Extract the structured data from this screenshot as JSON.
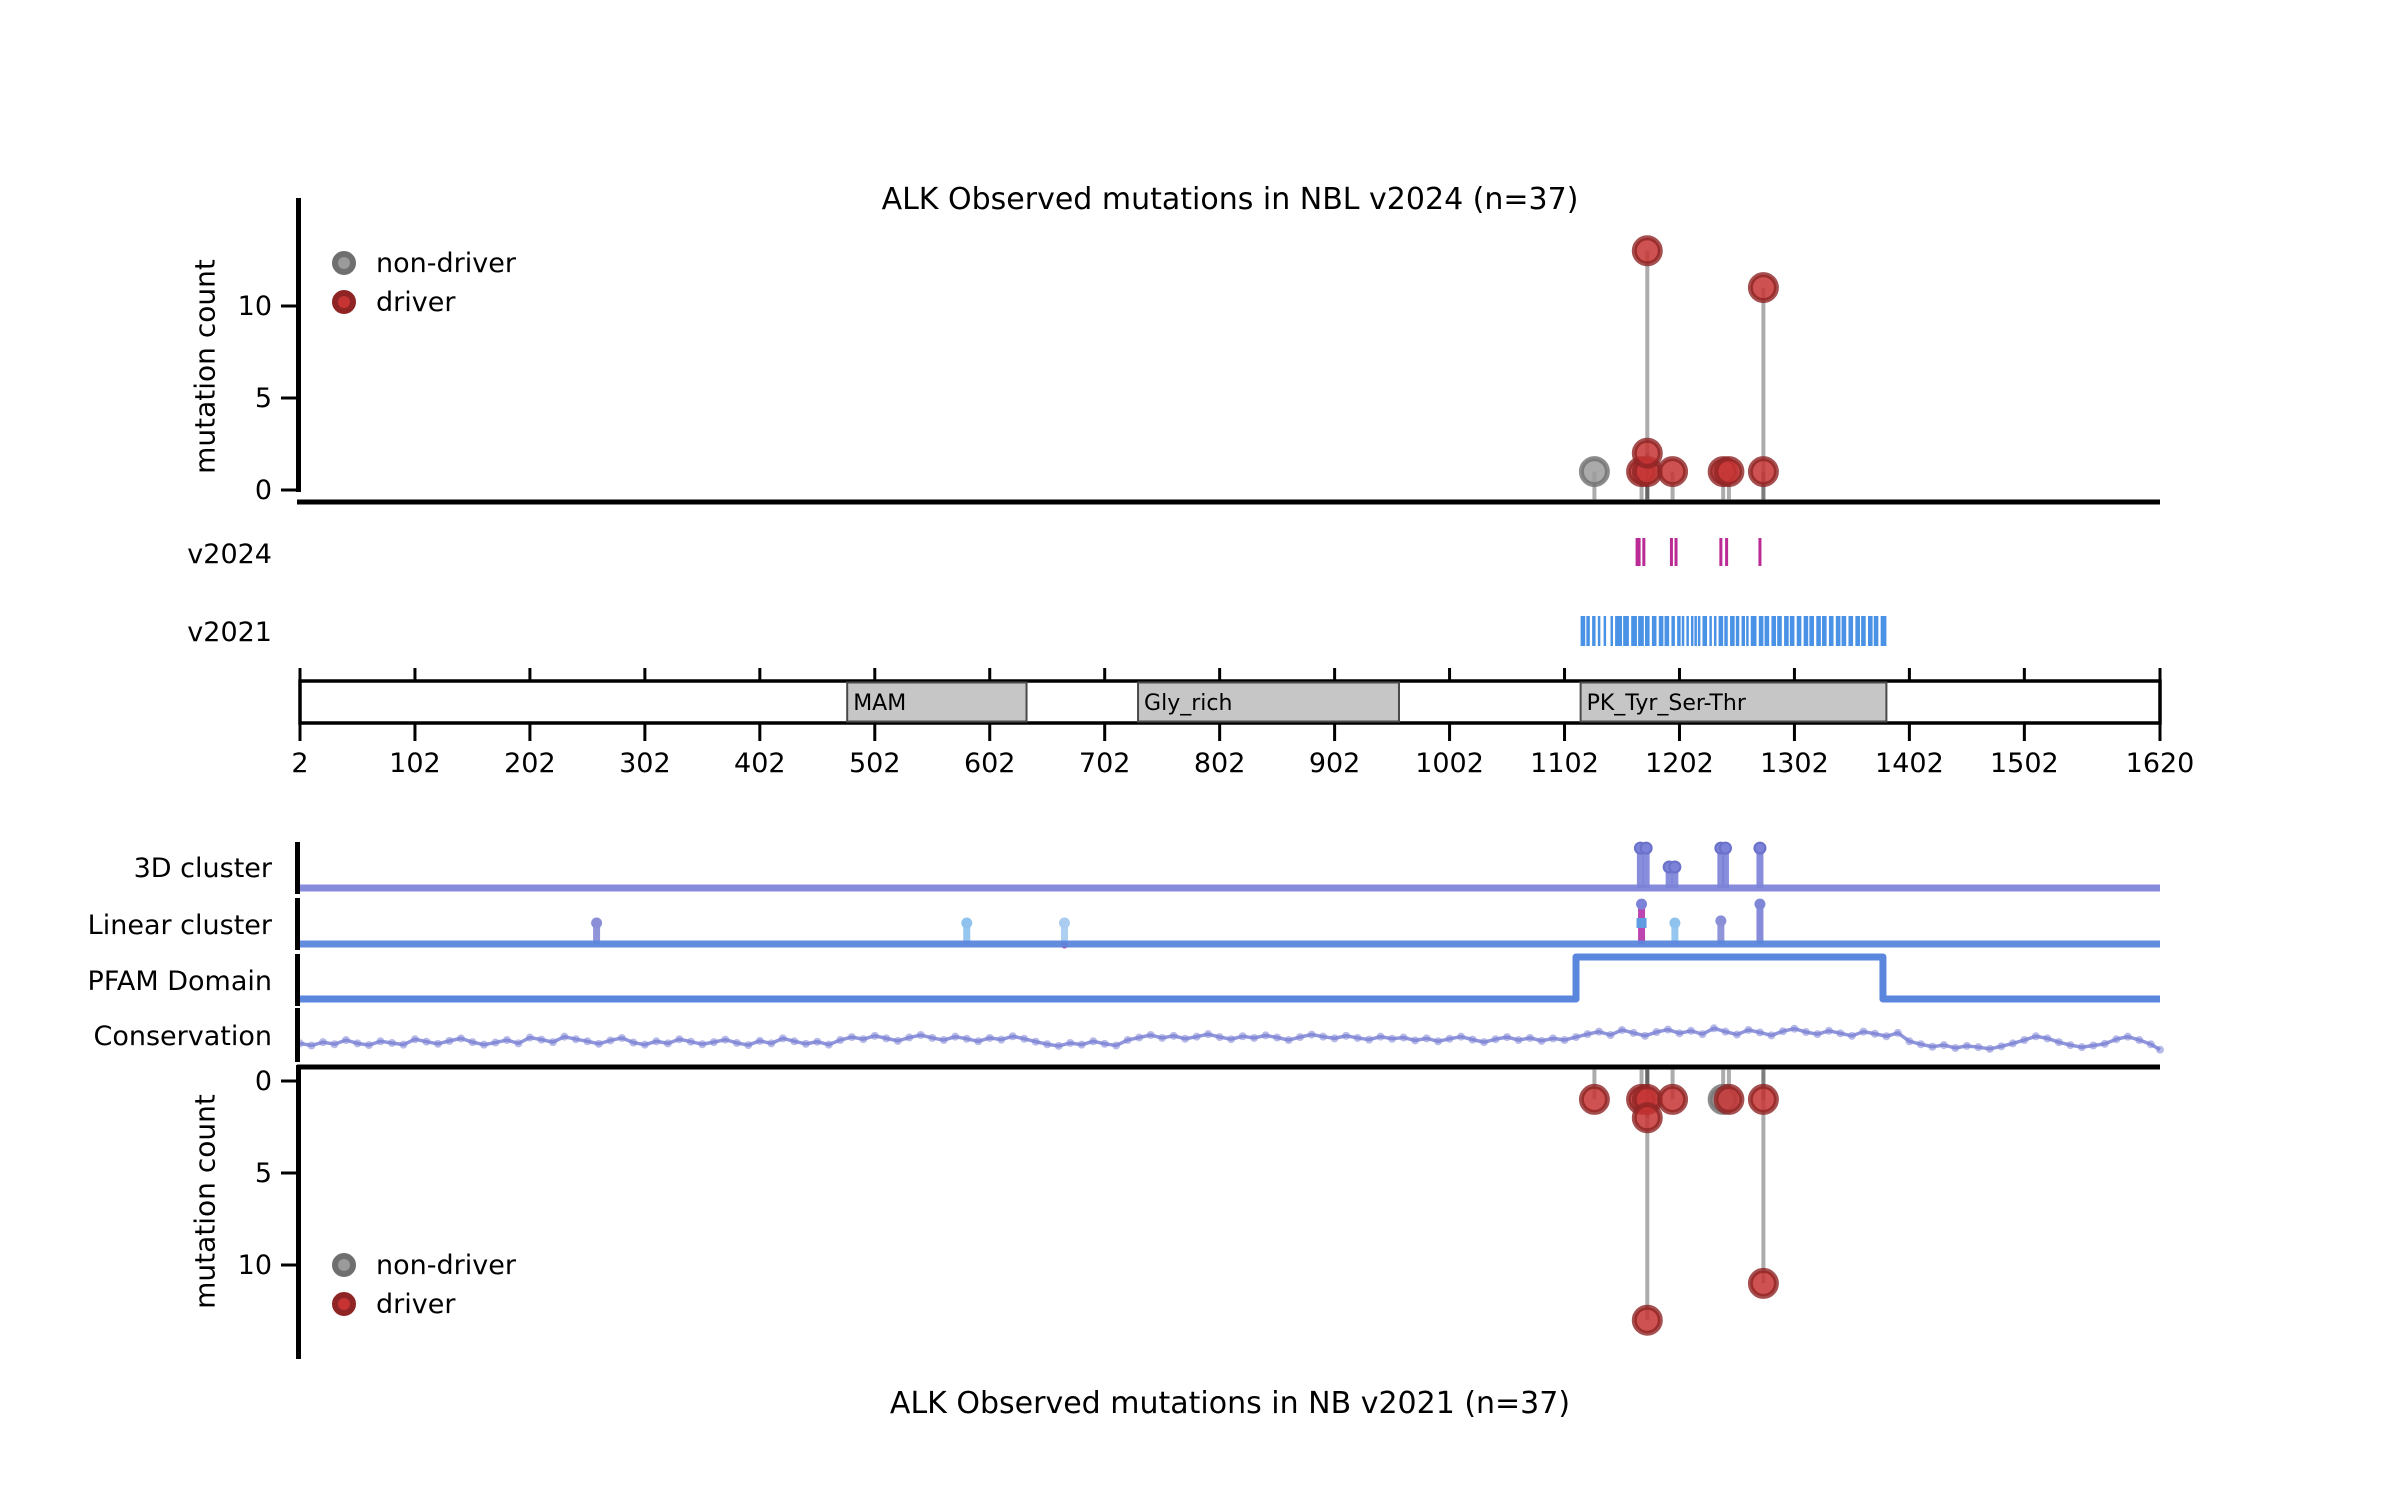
{
  "chart_data": {
    "type": "lollipop-mutation-plot",
    "gene": "ALK",
    "xlim": [
      2,
      1620
    ],
    "xticks": [
      2,
      102,
      202,
      302,
      402,
      502,
      602,
      702,
      802,
      902,
      1002,
      1102,
      1202,
      1302,
      1402,
      1502,
      1620
    ],
    "top_plot": {
      "title": "ALK Observed mutations in NBL v2024 (n=37)",
      "ylabel": "mutation count",
      "yticks": [
        0,
        5,
        10
      ],
      "legend": [
        {
          "label": "non-driver",
          "fill": "#9b9b9b",
          "edge": "#6f6f6f"
        },
        {
          "label": "driver",
          "fill": "#c63434",
          "edge": "#8f2424"
        }
      ],
      "lollipops": [
        {
          "pos": 1128,
          "count": 1,
          "type": "non-driver"
        },
        {
          "pos": 1169,
          "count": 1,
          "type": "driver"
        },
        {
          "pos": 1174,
          "count": 1,
          "type": "driver"
        },
        {
          "pos": 1174,
          "count": 2,
          "type": "driver"
        },
        {
          "pos": 1174,
          "count": 13,
          "type": "driver"
        },
        {
          "pos": 1196,
          "count": 1,
          "type": "driver"
        },
        {
          "pos": 1240,
          "count": 1,
          "type": "driver"
        },
        {
          "pos": 1245,
          "count": 1,
          "type": "driver"
        },
        {
          "pos": 1275,
          "count": 1,
          "type": "driver"
        },
        {
          "pos": 1275,
          "count": 11,
          "type": "driver"
        }
      ]
    },
    "bottom_plot": {
      "title": "ALK Observed mutations in NB v2021 (n=37)",
      "ylabel": "mutation count",
      "yticks": [
        0,
        5,
        10
      ],
      "legend": [
        {
          "label": "non-driver",
          "fill": "#9b9b9b",
          "edge": "#6f6f6f"
        },
        {
          "label": "driver",
          "fill": "#c63434",
          "edge": "#8f2424"
        }
      ],
      "lollipops": [
        {
          "pos": 1128,
          "count": 1,
          "type": "driver"
        },
        {
          "pos": 1169,
          "count": 1,
          "type": "driver"
        },
        {
          "pos": 1174,
          "count": 1,
          "type": "driver"
        },
        {
          "pos": 1174,
          "count": 2,
          "type": "driver"
        },
        {
          "pos": 1174,
          "count": 13,
          "type": "driver"
        },
        {
          "pos": 1196,
          "count": 1,
          "type": "driver"
        },
        {
          "pos": 1240,
          "count": 1,
          "type": "non-driver"
        },
        {
          "pos": 1245,
          "count": 1,
          "type": "driver"
        },
        {
          "pos": 1275,
          "count": 1,
          "type": "driver"
        },
        {
          "pos": 1275,
          "count": 11,
          "type": "driver"
        }
      ]
    },
    "tracks": {
      "v2024": {
        "label": "v2024",
        "color": "#bb2b96",
        "ticks": [
          [
            1166,
            5
          ],
          [
            1171,
            3
          ],
          [
            1195,
            3
          ],
          [
            1199,
            3
          ],
          [
            1238,
            3
          ],
          [
            1243,
            3
          ],
          [
            1272,
            3
          ]
        ]
      },
      "v2021": {
        "label": "v2021",
        "color": "#4a92e6",
        "segments": [
          [
            1116,
            1120
          ],
          [
            1121,
            1124
          ],
          [
            1126,
            1129
          ],
          [
            1131,
            1133
          ],
          [
            1136,
            1137
          ],
          [
            1142,
            1144
          ],
          [
            1146,
            1152
          ],
          [
            1153,
            1158
          ],
          [
            1160,
            1165
          ],
          [
            1166,
            1171
          ],
          [
            1172,
            1176
          ],
          [
            1178,
            1182
          ],
          [
            1184,
            1188
          ],
          [
            1189,
            1193
          ],
          [
            1195,
            1198
          ],
          [
            1200,
            1203
          ],
          [
            1204,
            1206
          ],
          [
            1208,
            1210
          ],
          [
            1212,
            1213
          ],
          [
            1215,
            1216
          ],
          [
            1218,
            1219
          ],
          [
            1222,
            1226
          ],
          [
            1228,
            1230
          ],
          [
            1232,
            1234
          ],
          [
            1236,
            1240
          ],
          [
            1241,
            1244
          ],
          [
            1246,
            1250
          ],
          [
            1251,
            1254
          ],
          [
            1256,
            1259
          ],
          [
            1260,
            1262
          ],
          [
            1264,
            1269
          ],
          [
            1271,
            1275
          ],
          [
            1276,
            1280
          ],
          [
            1282,
            1286
          ],
          [
            1287,
            1291
          ],
          [
            1293,
            1297
          ],
          [
            1298,
            1302
          ],
          [
            1304,
            1308
          ],
          [
            1310,
            1314
          ],
          [
            1315,
            1319
          ],
          [
            1321,
            1325
          ],
          [
            1326,
            1330
          ],
          [
            1332,
            1336
          ],
          [
            1338,
            1342
          ],
          [
            1343,
            1347
          ],
          [
            1349,
            1353
          ],
          [
            1355,
            1359
          ],
          [
            1360,
            1364
          ],
          [
            1366,
            1370
          ],
          [
            1371,
            1375
          ],
          [
            1377,
            1382
          ]
        ]
      },
      "domain_axis": {
        "band_fill": "#ffffff",
        "domain_fill": "#c6c6c6",
        "domains": [
          {
            "name": "MAM",
            "start": 478,
            "end": 634
          },
          {
            "name": "Gly_rich",
            "start": 731,
            "end": 958
          },
          {
            "name": "PK_Tyr_Ser-Thr",
            "start": 1116,
            "end": 1382
          }
        ]
      },
      "cluster_3d": {
        "label": "3D cluster",
        "color": "#7b82d8",
        "spikes": [
          [
            1168,
            0.95
          ],
          [
            1173,
            0.95
          ],
          [
            1193,
            0.5
          ],
          [
            1198,
            0.5
          ],
          [
            1238,
            0.95
          ],
          [
            1242,
            0.95
          ],
          [
            1272,
            0.95
          ]
        ]
      },
      "cluster_linear": {
        "label": "Linear cluster",
        "spikes": [
          {
            "pos": 260,
            "h": 0.5,
            "color": "#8a8fd8"
          },
          {
            "pos": 582,
            "h": 0.5,
            "color": "#8fc3ee"
          },
          {
            "pos": 667,
            "h": 0.5,
            "color": "#a9ccf0",
            "base_dot": "#cc3ba0"
          },
          {
            "pos": 1169,
            "h": 0.95,
            "color": "#b93bac",
            "top": "#7b82d8",
            "mid_square": "#5f9be0"
          },
          {
            "pos": 1198,
            "h": 0.5,
            "color": "#8fc3ee"
          },
          {
            "pos": 1238,
            "h": 0.55,
            "color": "#8a8fd8"
          },
          {
            "pos": 1272,
            "h": 0.95,
            "color": "#7e86d8"
          }
        ]
      },
      "pfam": {
        "label": "PFAM Domain",
        "color": "#5b86dd",
        "step_start": 1112,
        "step_end": 1379
      },
      "conservation": {
        "label": "Conservation",
        "color": "#7d84d6",
        "x_start": 2,
        "x_step": 10,
        "values": [
          0.3,
          0.25,
          0.33,
          0.28,
          0.38,
          0.3,
          0.26,
          0.35,
          0.31,
          0.27,
          0.4,
          0.34,
          0.29,
          0.36,
          0.42,
          0.33,
          0.27,
          0.32,
          0.38,
          0.3,
          0.44,
          0.39,
          0.33,
          0.46,
          0.4,
          0.35,
          0.29,
          0.37,
          0.43,
          0.32,
          0.27,
          0.35,
          0.3,
          0.4,
          0.34,
          0.28,
          0.33,
          0.39,
          0.31,
          0.26,
          0.36,
          0.3,
          0.42,
          0.35,
          0.29,
          0.34,
          0.27,
          0.38,
          0.45,
          0.4,
          0.48,
          0.42,
          0.36,
          0.44,
          0.5,
          0.43,
          0.38,
          0.46,
          0.41,
          0.35,
          0.43,
          0.39,
          0.47,
          0.41,
          0.34,
          0.28,
          0.24,
          0.31,
          0.27,
          0.35,
          0.29,
          0.25,
          0.38,
          0.44,
          0.5,
          0.43,
          0.48,
          0.41,
          0.46,
          0.52,
          0.45,
          0.4,
          0.47,
          0.43,
          0.49,
          0.44,
          0.38,
          0.45,
          0.51,
          0.46,
          0.42,
          0.48,
          0.43,
          0.39,
          0.46,
          0.41,
          0.44,
          0.37,
          0.42,
          0.35,
          0.41,
          0.46,
          0.39,
          0.33,
          0.4,
          0.45,
          0.38,
          0.43,
          0.36,
          0.42,
          0.38,
          0.45,
          0.52,
          0.58,
          0.5,
          0.62,
          0.55,
          0.48,
          0.57,
          0.63,
          0.54,
          0.6,
          0.52,
          0.66,
          0.58,
          0.51,
          0.62,
          0.56,
          0.49,
          0.59,
          0.65,
          0.57,
          0.52,
          0.6,
          0.54,
          0.48,
          0.58,
          0.53,
          0.47,
          0.55,
          0.35,
          0.28,
          0.22,
          0.26,
          0.19,
          0.24,
          0.21,
          0.17,
          0.23,
          0.3,
          0.38,
          0.47,
          0.42,
          0.33,
          0.26,
          0.21,
          0.25,
          0.29,
          0.4,
          0.46,
          0.38,
          0.28,
          0.15
        ]
      }
    },
    "style": {
      "stem_color": "rgba(70,70,70,0.45)",
      "axis_color": "#000000"
    }
  }
}
